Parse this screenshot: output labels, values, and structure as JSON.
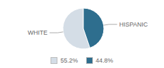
{
  "chart_data": {
    "type": "pie",
    "categories": [
      "WHITE",
      "HISPANIC"
    ],
    "values": [
      55.2,
      44.8
    ],
    "value_labels": [
      "55.2%",
      "44.8%"
    ],
    "colors": [
      "#d4dde6",
      "#2e6e8e"
    ],
    "legend": "bottom"
  }
}
